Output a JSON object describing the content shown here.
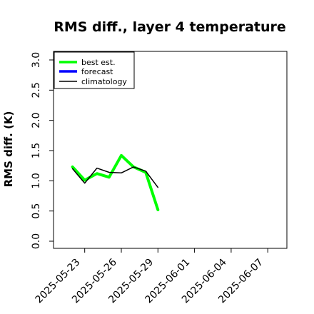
{
  "chart_data": {
    "type": "line",
    "title": "RMS diff., layer 4 temperature",
    "xlabel": "",
    "ylabel": "RMS diff. (K)",
    "ylim": [
      0.0,
      3.0
    ],
    "yticks": [
      "0.0",
      "0.5",
      "1.0",
      "1.5",
      "2.0",
      "2.5",
      "3.0"
    ],
    "xlim": [
      "2025-05-21",
      "2025-06-09"
    ],
    "xticks": [
      "2025-05-23",
      "2025-05-26",
      "2025-05-29",
      "2025-06-01",
      "2025-06-04",
      "2025-06-07"
    ],
    "highlight_xtick": "2025-05-29",
    "highlight_color": "#228B22",
    "legend_position": "top-left",
    "grid": false,
    "series": [
      {
        "name": "best est.",
        "color": "#00ff00",
        "x": [
          "2025-05-22",
          "2025-05-23",
          "2025-05-24",
          "2025-05-25",
          "2025-05-26",
          "2025-05-27",
          "2025-05-28",
          "2025-05-29"
        ],
        "y": [
          1.23,
          1.01,
          1.12,
          1.06,
          1.42,
          1.23,
          1.14,
          0.52
        ]
      },
      {
        "name": "forecast",
        "color": "#0000ff",
        "x": [],
        "y": []
      },
      {
        "name": "climatology",
        "color": "#000000",
        "x": [
          "2025-05-22",
          "2025-05-23",
          "2025-05-24",
          "2025-05-25",
          "2025-05-26",
          "2025-05-27",
          "2025-05-28",
          "2025-05-29"
        ],
        "y": [
          1.2,
          0.96,
          1.21,
          1.14,
          1.13,
          1.23,
          1.16,
          0.89
        ]
      }
    ]
  }
}
